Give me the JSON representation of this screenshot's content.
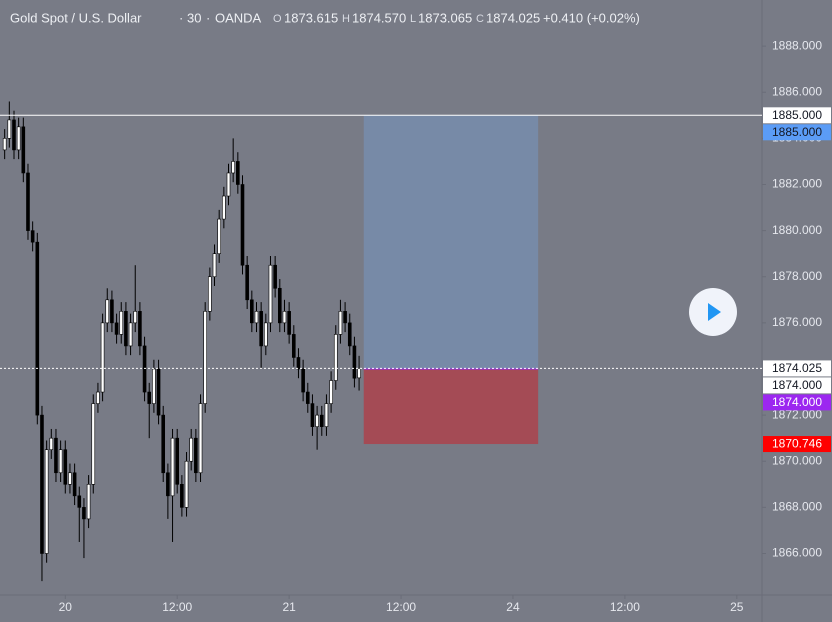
{
  "header": {
    "symbol": "Gold Spot / U.S. Dollar",
    "interval": "30",
    "exchange": "OANDA",
    "o_key": "O",
    "open": "1873.615",
    "h_key": "H",
    "high": "1874.570",
    "l_key": "L",
    "low": "1873.065",
    "c_key": "C",
    "close": "1874.025",
    "change": "+0.410 (+0.02%)"
  },
  "chart_data": {
    "type": "candlestick",
    "x": [
      -6.5,
      -6,
      -5.5,
      -5,
      -4.5,
      -4,
      -3.5,
      -3,
      -2.5,
      -2,
      -1.5,
      -1,
      -0.5,
      0,
      0.5,
      1,
      1.5,
      2,
      2.5,
      3,
      3.5,
      4,
      4.5,
      5,
      5.5,
      6,
      6.5,
      7,
      7.5,
      8,
      8.5,
      9,
      9.5,
      10,
      10.5,
      11,
      11.5,
      12,
      12.5,
      13,
      13.5,
      14,
      14.5,
      15,
      15.5,
      16,
      16.5,
      17,
      17.5,
      18,
      18.5,
      19,
      19.5,
      20,
      20.5,
      21,
      21.5,
      22,
      22.5,
      23,
      23.5,
      24,
      24.5,
      25,
      25.5,
      26,
      26.5,
      27,
      27.5,
      28,
      28.5,
      29,
      29.5,
      30,
      30.5,
      31,
      31.5
    ],
    "open": [
      1883.5,
      1884.0,
      1884.8,
      1883.5,
      1884.5,
      1882.5,
      1880.0,
      1879.5,
      1872.0,
      1866.0,
      1870.5,
      1871.0,
      1869.5,
      1870.5,
      1869.0,
      1869.5,
      1868.5,
      1868.0,
      1867.5,
      1869.0,
      1872.5,
      1873.0,
      1876.0,
      1877.0,
      1876.0,
      1875.5,
      1876.5,
      1875.0,
      1876.0,
      1876.5,
      1875.0,
      1873.0,
      1872.5,
      1874.0,
      1872.0,
      1869.5,
      1868.5,
      1871.0,
      1869.0,
      1868.0,
      1870.0,
      1871.0,
      1869.5,
      1872.5,
      1876.5,
      1878.0,
      1879.0,
      1880.5,
      1881.5,
      1882.5,
      1883.0,
      1882.0,
      1878.5,
      1877.0,
      1876.0,
      1876.5,
      1875.0,
      1876.0,
      1878.5,
      1877.5,
      1876.0,
      1876.5,
      1875.5,
      1874.5,
      1874.0,
      1873.0,
      1872.5,
      1871.5,
      1872.0,
      1871.5,
      1872.5,
      1873.5,
      1875.5,
      1876.5,
      1876.0,
      1875.0,
      1873.615
    ],
    "high": [
      1884.4,
      1885.6,
      1885.2,
      1884.9,
      1884.9,
      1882.9,
      1880.4,
      1879.9,
      1872.4,
      1870.9,
      1871.4,
      1871.4,
      1870.9,
      1870.9,
      1869.9,
      1869.9,
      1868.9,
      1868.4,
      1869.4,
      1872.9,
      1873.4,
      1876.4,
      1877.5,
      1877.4,
      1876.4,
      1876.9,
      1876.9,
      1876.4,
      1878.5,
      1876.9,
      1875.4,
      1873.4,
      1874.4,
      1874.4,
      1872.4,
      1869.9,
      1871.4,
      1871.4,
      1869.4,
      1870.4,
      1871.4,
      1871.4,
      1872.9,
      1876.9,
      1878.4,
      1879.4,
      1880.9,
      1881.9,
      1882.9,
      1884.0,
      1883.4,
      1882.4,
      1878.9,
      1877.4,
      1876.9,
      1876.9,
      1876.4,
      1878.9,
      1878.9,
      1877.9,
      1877.0,
      1876.9,
      1875.9,
      1874.9,
      1874.4,
      1873.4,
      1872.9,
      1872.4,
      1872.4,
      1872.9,
      1873.9,
      1875.9,
      1877.0,
      1876.9,
      1876.4,
      1875.4,
      1874.57
    ],
    "low": [
      1883.1,
      1883.6,
      1883.1,
      1883.1,
      1882.1,
      1879.6,
      1879.1,
      1871.6,
      1864.8,
      1865.6,
      1870.1,
      1869.1,
      1869.1,
      1868.6,
      1868.6,
      1868.1,
      1866.5,
      1865.8,
      1867.1,
      1868.6,
      1872.1,
      1872.6,
      1875.6,
      1875.6,
      1875.1,
      1875.1,
      1874.6,
      1874.6,
      1875.6,
      1874.6,
      1872.6,
      1871.0,
      1872.1,
      1871.6,
      1869.1,
      1867.5,
      1866.5,
      1868.6,
      1867.6,
      1867.6,
      1869.6,
      1869.1,
      1869.1,
      1872.1,
      1876.1,
      1877.6,
      1878.6,
      1880.1,
      1881.1,
      1882.1,
      1881.6,
      1878.1,
      1876.6,
      1875.6,
      1875.6,
      1874.0,
      1874.6,
      1875.6,
      1877.1,
      1875.6,
      1875.6,
      1875.1,
      1874.1,
      1873.6,
      1872.6,
      1872.1,
      1871.1,
      1870.5,
      1871.1,
      1871.1,
      1872.1,
      1873.1,
      1875.1,
      1875.6,
      1874.6,
      1873.2,
      1873.065
    ],
    "close": [
      1884.0,
      1884.8,
      1883.5,
      1884.5,
      1882.5,
      1880.0,
      1879.5,
      1872.0,
      1866.0,
      1870.5,
      1871.0,
      1869.5,
      1870.5,
      1869.0,
      1869.5,
      1868.5,
      1868.0,
      1867.5,
      1869.0,
      1872.5,
      1873.0,
      1876.0,
      1877.0,
      1876.0,
      1875.5,
      1876.5,
      1875.0,
      1876.0,
      1876.5,
      1875.0,
      1873.0,
      1872.5,
      1874.0,
      1872.0,
      1869.5,
      1868.5,
      1871.0,
      1869.0,
      1868.0,
      1870.0,
      1871.0,
      1869.5,
      1872.5,
      1876.5,
      1878.0,
      1879.0,
      1880.5,
      1881.5,
      1882.5,
      1883.0,
      1882.0,
      1878.5,
      1877.0,
      1876.0,
      1876.5,
      1875.0,
      1876.0,
      1878.5,
      1877.5,
      1876.0,
      1876.5,
      1875.5,
      1874.5,
      1874.0,
      1873.0,
      1872.5,
      1871.5,
      1872.0,
      1871.5,
      1872.5,
      1873.5,
      1875.5,
      1876.5,
      1876.0,
      1875.0,
      1873.6,
      1874.025
    ],
    "up_color": "#ffffff",
    "down_color": "#000000",
    "xlim": [
      -7,
      74.7
    ],
    "ylim": [
      1864.2,
      1890.0
    ],
    "xticks": [
      {
        "value": 0,
        "label": "20"
      },
      {
        "value": 12,
        "label": "12:00"
      },
      {
        "value": 24,
        "label": "21"
      },
      {
        "value": 36,
        "label": "12:00"
      },
      {
        "value": 48,
        "label": "24"
      },
      {
        "value": 60,
        "label": "12:00"
      },
      {
        "value": 72,
        "label": "25"
      }
    ],
    "yticks": [
      {
        "value": 1866,
        "label": "1866.000"
      },
      {
        "value": 1868,
        "label": "1868.000"
      },
      {
        "value": 1870,
        "label": "1870.000"
      },
      {
        "value": 1872,
        "label": "1872.000"
      },
      {
        "value": 1874,
        "label": "1874.000"
      },
      {
        "value": 1876,
        "label": "1876.000"
      },
      {
        "value": 1878,
        "label": "1878.000"
      },
      {
        "value": 1880,
        "label": "1880.000"
      },
      {
        "value": 1882,
        "label": "1882.000"
      },
      {
        "value": 1884,
        "label": "1884.000"
      },
      {
        "value": 1886,
        "label": "1886.000"
      },
      {
        "value": 1888,
        "label": "1888.000"
      }
    ],
    "position": {
      "x_start": 32,
      "x_end": 50.7,
      "entry": 1874.0,
      "target": 1885.0,
      "stop": 1870.746,
      "profit_color": "#778aa7",
      "loss_color": "#a44b55"
    },
    "lines": [
      {
        "value": 1885.0,
        "style": "solid",
        "color": "#ffffff"
      },
      {
        "value": 1874.025,
        "style": "dotted",
        "color": "#ffffff"
      }
    ],
    "price_labels": [
      {
        "value": 1885.0,
        "label": "1885.000",
        "color": "#ffffff",
        "text_color": "#131722"
      },
      {
        "value": 1885.0,
        "label": "1885.000",
        "color": "#5b9cf6",
        "text_color": "#131722"
      },
      {
        "value": 1874.025,
        "label": "1874.025",
        "color": "#ffffff",
        "text_color": "#131722"
      },
      {
        "value": 1874.0,
        "label": "1874.000",
        "color": "#ffffff",
        "text_color": "#131722"
      },
      {
        "value": 1874.0,
        "label": "1874.000",
        "color": "#9c27f0",
        "text_color": "#ffffff"
      },
      {
        "value": 1870.746,
        "label": "1870.746",
        "color": "#ff0000",
        "text_color": "#ffffff"
      }
    ]
  }
}
